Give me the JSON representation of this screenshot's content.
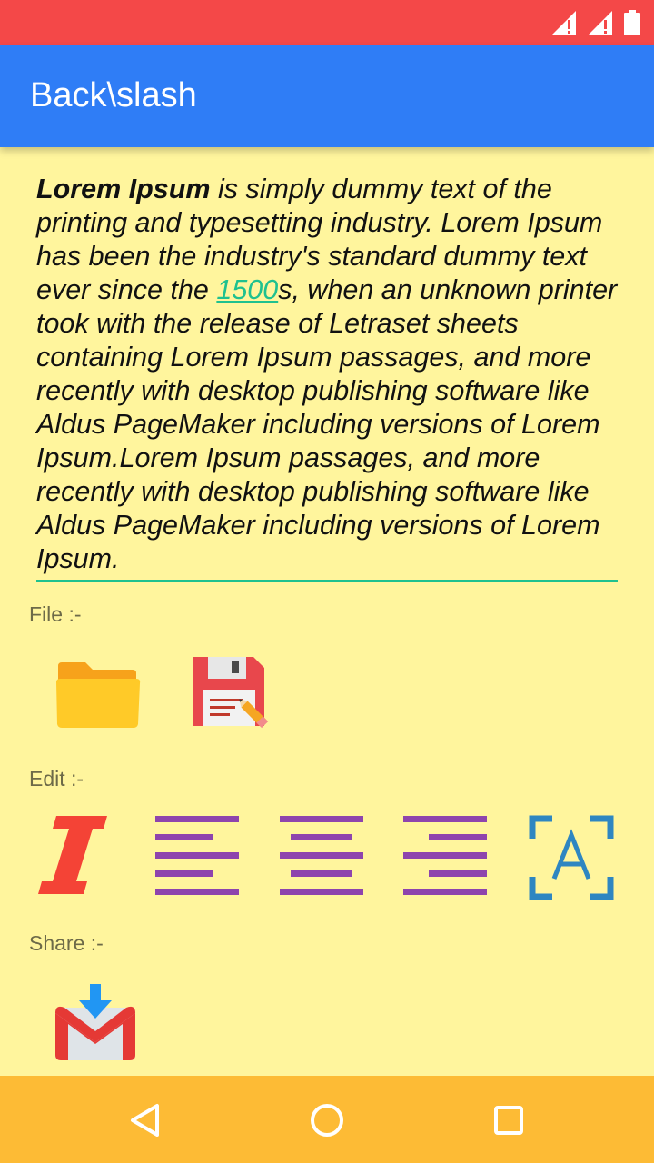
{
  "app_bar": {
    "title": "Back\\slash"
  },
  "editor": {
    "bold_text": "Lorem Ipsum",
    "text_before_link": " is simply dummy text of the printing and typesetting industry. Lorem Ipsum has been the industry's standard dummy text ever since the ",
    "link_text": "1500",
    "text_after_link": "s, when an unknown printer took with the release of Letraset sheets containing Lorem Ipsum passages, and more recently with desktop publishing software like Aldus PageMaker including versions of Lorem Ipsum.Lorem Ipsum passages, and more recently with desktop publishing software like Aldus PageMaker including versions of Lorem Ipsum.",
    "accent_color": "#1fc18f"
  },
  "sections": {
    "file_label": "File :-",
    "edit_label": "Edit :-",
    "share_label": "Share :-"
  },
  "icons": {
    "file": [
      "folder-open-icon",
      "save-icon"
    ],
    "edit": [
      "italic-icon",
      "align-left-icon",
      "align-center-icon",
      "align-right-icon",
      "text-select-icon"
    ],
    "share": [
      "gmail-icon"
    ]
  },
  "colors": {
    "status_bar": "#f44848",
    "app_bar": "#2f7df6",
    "background": "#fff59d",
    "nav_bar": "#fdbb35"
  }
}
